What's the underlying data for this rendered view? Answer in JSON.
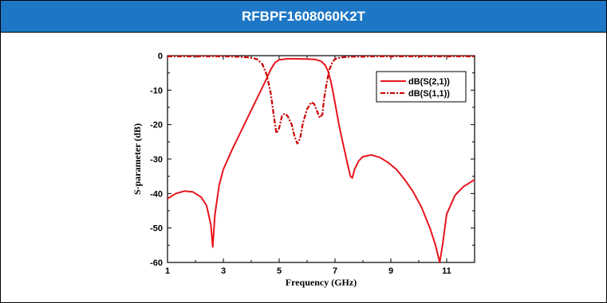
{
  "title": "RFBPF1608060K2T",
  "chart_data": {
    "type": "line",
    "xlabel": "Frequency (GHz)",
    "ylabel": "S-parameter (dB)",
    "xlim": [
      1,
      12
    ],
    "ylim": [
      -60,
      0
    ],
    "xticks": [
      1,
      3,
      5,
      7,
      9,
      11
    ],
    "yticks": [
      0,
      -10,
      -20,
      -30,
      -40,
      -50,
      -60
    ],
    "grid": false,
    "legend_position": "top-right",
    "series": [
      {
        "name": "dB(S(2,1))",
        "color": "#e8141b",
        "style": "solid",
        "x": [
          1.0,
          1.3,
          1.6,
          1.9,
          2.2,
          2.4,
          2.55,
          2.62,
          2.7,
          2.85,
          3.0,
          3.3,
          3.6,
          3.9,
          4.2,
          4.5,
          4.7,
          4.85,
          5.0,
          5.3,
          5.6,
          6.0,
          6.3,
          6.5,
          6.65,
          6.75,
          6.85,
          6.95,
          7.05,
          7.15,
          7.3,
          7.45,
          7.55,
          7.62,
          7.7,
          7.85,
          8.0,
          8.3,
          8.6,
          8.9,
          9.2,
          9.5,
          9.8,
          10.1,
          10.4,
          10.6,
          10.75,
          10.85,
          11.0,
          11.3,
          11.6,
          12.0
        ],
        "values": [
          -41.5,
          -40.0,
          -39.3,
          -39.5,
          -41.0,
          -43.5,
          -49.0,
          -55.5,
          -46.0,
          -37.5,
          -33.0,
          -27.5,
          -22.5,
          -17.5,
          -12.5,
          -7.5,
          -4.0,
          -2.0,
          -1.2,
          -0.9,
          -0.9,
          -1.0,
          -1.1,
          -1.6,
          -2.8,
          -4.5,
          -7.5,
          -11.5,
          -16.0,
          -20.5,
          -26.0,
          -31.5,
          -35.0,
          -35.5,
          -33.0,
          -30.5,
          -29.3,
          -28.8,
          -29.5,
          -31.0,
          -33.0,
          -36.0,
          -39.5,
          -44.0,
          -50.0,
          -55.0,
          -60.0,
          -55.0,
          -46.0,
          -40.5,
          -38.0,
          -36.0
        ]
      },
      {
        "name": "dB(S(1,1))",
        "color": "#cc0000",
        "style": "dash-dot",
        "x": [
          1.0,
          2.0,
          3.0,
          3.5,
          3.9,
          4.2,
          4.4,
          4.55,
          4.7,
          4.8,
          4.9,
          5.0,
          5.1,
          5.2,
          5.3,
          5.45,
          5.55,
          5.65,
          5.75,
          5.85,
          6.0,
          6.15,
          6.25,
          6.35,
          6.45,
          6.55,
          6.6,
          6.7,
          6.8,
          6.9,
          7.0,
          7.2,
          7.6,
          8.5,
          10.0,
          12.0
        ],
        "values": [
          -0.2,
          -0.2,
          -0.2,
          -0.3,
          -0.5,
          -1.0,
          -2.5,
          -5.5,
          -11.0,
          -17.0,
          -22.5,
          -21.0,
          -17.5,
          -16.8,
          -17.5,
          -20.0,
          -23.5,
          -25.5,
          -24.0,
          -19.5,
          -15.5,
          -13.5,
          -14.0,
          -16.0,
          -18.0,
          -17.0,
          -13.0,
          -8.0,
          -4.0,
          -2.0,
          -1.0,
          -0.5,
          -0.3,
          -0.2,
          -0.2,
          -0.2
        ]
      }
    ]
  }
}
